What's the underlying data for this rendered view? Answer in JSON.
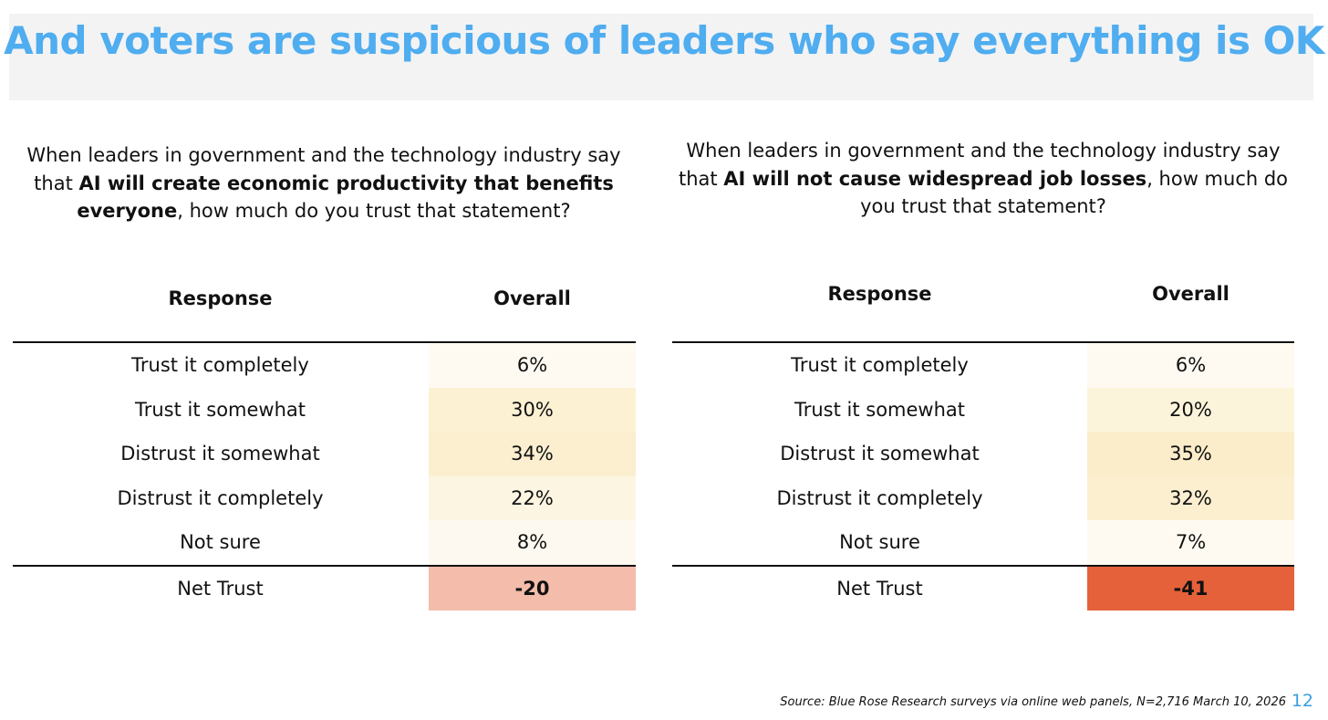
{
  "title": "And voters are suspicious of leaders who say everything is OK",
  "chart_data": [
    {
      "type": "table",
      "question": {
        "pre": "When leaders in government and the technology industry say that ",
        "bold": "AI will create economic productivity that benefits everyone",
        "post": ", how much do you trust that statement?"
      },
      "columns": [
        "Response",
        "Overall"
      ],
      "rows": [
        {
          "response": "Trust it completely",
          "value": "6%",
          "color": "#fefaf1"
        },
        {
          "response": "Trust it somewhat",
          "value": "30%",
          "color": "#fcf1d3"
        },
        {
          "response": "Distrust it somewhat",
          "value": "34%",
          "color": "#fbefcf"
        },
        {
          "response": "Distrust it completely",
          "value": "22%",
          "color": "#fcf5e1"
        },
        {
          "response": "Not sure",
          "value": "8%",
          "color": "#fef9f0"
        }
      ],
      "net": {
        "response": "Net Trust",
        "value": "-20",
        "color": "#f4bcaa"
      }
    },
    {
      "type": "table",
      "question": {
        "pre": "When leaders in government and the technology industry say that ",
        "bold": "AI will not cause widespread job losses",
        "post": ", how much do you trust that statement?"
      },
      "columns": [
        "Response",
        "Overall"
      ],
      "rows": [
        {
          "response": "Trust it completely",
          "value": "6%",
          "color": "#fefaf1"
        },
        {
          "response": "Trust it somewhat",
          "value": "20%",
          "color": "#fcf4da"
        },
        {
          "response": "Distrust it somewhat",
          "value": "35%",
          "color": "#fbedca"
        },
        {
          "response": "Distrust it completely",
          "value": "32%",
          "color": "#fbefd0"
        },
        {
          "response": "Not sure",
          "value": "7%",
          "color": "#fefaf1"
        }
      ],
      "net": {
        "response": "Net Trust",
        "value": "-41",
        "color": "#e4613a"
      }
    }
  ],
  "source": "Source: Blue Rose Research surveys via online web panels, N=2,716 March 10, 2026",
  "page_number": "12"
}
